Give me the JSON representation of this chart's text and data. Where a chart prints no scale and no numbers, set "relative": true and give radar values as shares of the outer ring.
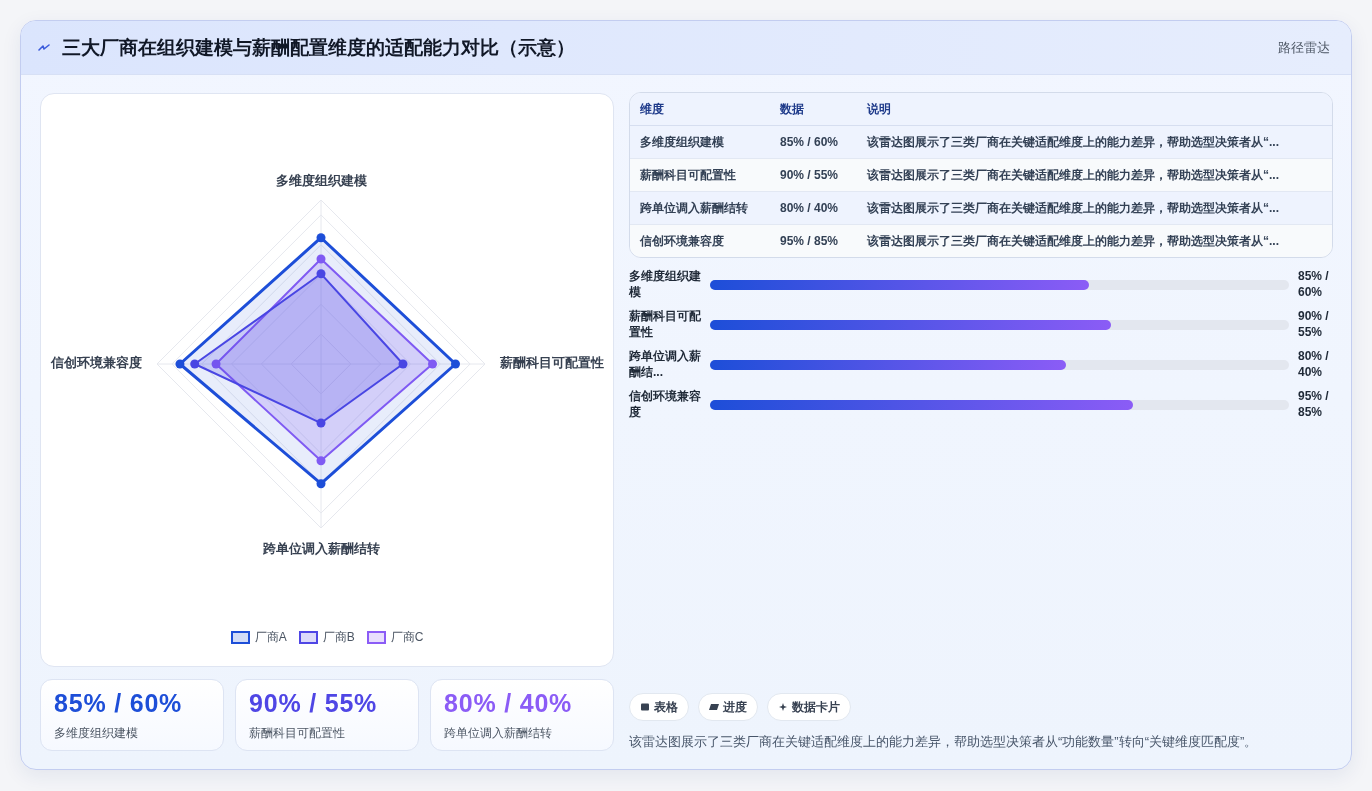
{
  "chart_data": [
    {
      "type": "radar",
      "title": "三大厂商在组织建模与薪酬配置维度的适配能力对比（示意）",
      "annotations": [
        "路径雷达"
      ],
      "categories": [
        "多维度组织建模",
        "薪酬科目可配置性",
        "跨单位调入薪酬结转",
        "信创环境兼容度"
      ],
      "relative": true,
      "grid": true,
      "legend": "bottom",
      "marker": "circle",
      "series": [
        {
          "name": "厂商A",
          "color": "#1d4ed8",
          "values": [
            0.77,
            0.82,
            0.73,
            0.86
          ]
        },
        {
          "name": "厂商B",
          "color": "#4f46e5",
          "values": [
            0.55,
            0.5,
            0.36,
            0.77
          ]
        },
        {
          "name": "厂商C",
          "color": "#8b5cf6",
          "values": [
            0.64,
            0.68,
            0.59,
            0.64
          ]
        }
      ]
    },
    {
      "type": "other",
      "categories": [
        "维度",
        "数据",
        "说明"
      ],
      "cell_labels": [
        [
          "多维度组织建模",
          "85% / 60%",
          "该雷达图展示了三类厂商在关键适配维度上的能力差异，帮助选型决策者从“..."
        ],
        [
          "薪酬科目可配置性",
          "90% / 55%",
          "该雷达图展示了三类厂商在关键适配维度上的能力差异，帮助选型决策者从“..."
        ],
        [
          "跨单位调入薪酬结转",
          "80% / 40%",
          "该雷达图展示了三类厂商在关键适配维度上的能力差异，帮助选型决策者从“..."
        ],
        [
          "信创环境兼容度",
          "95% / 85%",
          "该雷达图展示了三类厂商在关键适配维度上的能力差异，帮助选型决策者从“..."
        ]
      ]
    },
    {
      "type": "bar",
      "orientation": "horizontal",
      "categories": [
        "多维度组织建模",
        "薪酬科目可配置性",
        "跨单位调入薪酬结...",
        "信创环境兼容度"
      ],
      "values": [
        85,
        90,
        80,
        95
      ],
      "value_labels": [
        "85% / 60%",
        "90% / 55%",
        "80% / 40%",
        "95% / 85%"
      ],
      "xlim": [
        0,
        130
      ],
      "tick_labels": "y",
      "color": "#1d4ed8"
    },
    {
      "type": "other",
      "categories": [
        "多维度组织建模",
        "薪酬科目可配置性",
        "跨单位调入薪酬结转"
      ],
      "value_labels": [
        "85% / 60%",
        "90% / 55%",
        "80% / 40%"
      ],
      "colors": [
        "#1d4ed8",
        "#4f46e5",
        "#8b5cf6"
      ]
    },
    {
      "type": "other",
      "categories": [
        "表格",
        "进度",
        "数据卡片"
      ],
      "annotations": [
        "该雷达图展示了三类厂商在关键适配维度上的能力差异，帮助选型决策者从“功能数量”转向“关键维度匹配度”。"
      ]
    }
  ]
}
